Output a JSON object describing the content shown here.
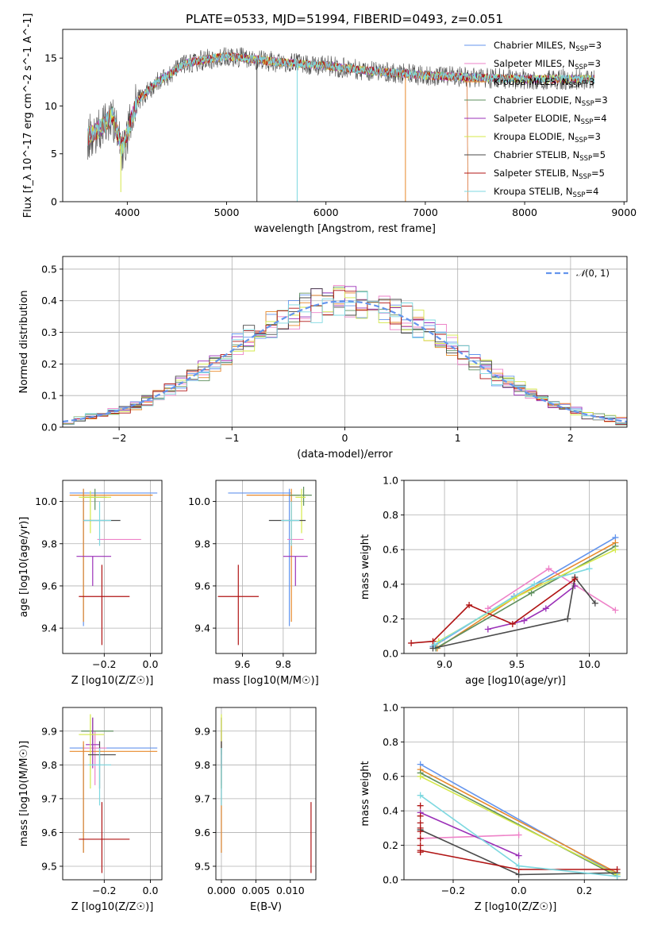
{
  "title": "PLATE=0533, MJD=51994, FIBERID=0493, z=0.051",
  "series": [
    {
      "name": "Chabrier MILES, N$_{SSP}$=3",
      "label_main": "Chabrier MILES, N",
      "label_sub": "SSP",
      "label_tail": "=3",
      "color": "#6495ED"
    },
    {
      "name": "Salpeter MILES, N$_{SSP}$=3",
      "label_main": "Salpeter MILES, N",
      "label_sub": "SSP",
      "label_tail": "=3",
      "color": "#EE82C8"
    },
    {
      "name": "Kroupa MILES, N$_{SSP}$=3",
      "label_main": "Kroupa MILES, N",
      "label_sub": "SSP",
      "label_tail": "=3",
      "color": "#E8892A"
    },
    {
      "name": "Chabrier ELODIE, N$_{SSP}$=3",
      "label_main": "Chabrier ELODIE, N",
      "label_sub": "SSP",
      "label_tail": "=3",
      "color": "#5E8F5E"
    },
    {
      "name": "Salpeter ELODIE, N$_{SSP}$=4",
      "label_main": "Salpeter ELODIE, N",
      "label_sub": "SSP",
      "label_tail": "=4",
      "color": "#9B30B8"
    },
    {
      "name": "Kroupa ELODIE, N$_{SSP}$=3",
      "label_main": "Kroupa ELODIE, N",
      "label_sub": "SSP",
      "label_tail": "=3",
      "color": "#D4E84A"
    },
    {
      "name": "Chabrier STELIB, N$_{SSP}$=5",
      "label_main": "Chabrier STELIB, N",
      "label_sub": "SSP",
      "label_tail": "=5",
      "color": "#4A4A4A"
    },
    {
      "name": "Salpeter STELIB, N$_{SSP}$=5",
      "label_main": "Salpeter STELIB, N",
      "label_sub": "SSP",
      "label_tail": "=5",
      "color": "#B01414"
    },
    {
      "name": "Kroupa STELIB, N$_{SSP}$=4",
      "label_main": "Kroupa STELIB, N",
      "label_sub": "SSP",
      "label_tail": "=4",
      "color": "#7DD8E0"
    }
  ],
  "chart_data": [
    {
      "id": "spectrum",
      "type": "line",
      "xlabel": "wavelength [Angstrom, rest frame]",
      "ylabel": "Flux [f_λ 10^-17 erg cm^-2 s^-1 A^-1]",
      "xlim": [
        3350,
        9030
      ],
      "ylim": [
        0,
        18
      ],
      "xticks": [
        4000,
        5000,
        6000,
        7000,
        8000,
        9000
      ],
      "yticks": [
        0,
        5,
        10,
        15
      ],
      "data_range": [
        3600,
        8700
      ],
      "continuum": {
        "x": [
          3600,
          3750,
          3850,
          3950,
          4100,
          4300,
          4600,
          5000,
          5500,
          6000,
          6500,
          7000,
          7400,
          8000,
          8700
        ],
        "y": [
          6.8,
          7.8,
          9.0,
          5.5,
          10.5,
          12.5,
          14.5,
          15.2,
          14.6,
          14.2,
          13.6,
          13.2,
          13.0,
          12.8,
          12.8
        ]
      },
      "model_end": {
        "MILES": 7420
      },
      "spikes_down": [
        {
          "x": 3935,
          "y": 1.0
        },
        {
          "x": 5305,
          "y": 0.0
        },
        {
          "x": 5710,
          "y": 0.0
        },
        {
          "x": 6800,
          "y": 0.0
        }
      ],
      "grid": false,
      "legend": "upper right"
    },
    {
      "id": "residual_hist",
      "type": "histogram",
      "xlabel": "(data-model)/error",
      "ylabel": "Normed distribution",
      "xlim": [
        -2.5,
        2.5
      ],
      "ylim": [
        0,
        0.54
      ],
      "xticks": [
        -2,
        -1,
        0,
        1,
        2
      ],
      "yticks": [
        0.0,
        0.1,
        0.2,
        0.3,
        0.4,
        0.5
      ],
      "bin_width": 0.1,
      "reference": {
        "name": "N(0,1)",
        "mean": 0,
        "sigma": 1,
        "style": "dashed"
      },
      "grid": true,
      "legend": "upper right"
    },
    {
      "id": "age_vs_Z",
      "type": "errorbar",
      "xlabel": "Z [log10(Z/Z☉)]",
      "ylabel": "age [log10(age/yr)]",
      "xlim": [
        -0.38,
        0.05
      ],
      "ylim": [
        9.28,
        10.1
      ],
      "xticks": [
        -0.2,
        0.0
      ],
      "yticks": [
        9.4,
        9.6,
        9.8,
        10.0
      ],
      "points": [
        {
          "x": -0.29,
          "y": 10.04,
          "xerr": [
            0.06,
            0.32
          ],
          "yerr": [
            0.63,
            0.02
          ]
        },
        {
          "x": -0.13,
          "y": 9.82,
          "xerr": [
            0.1,
            0.09
          ],
          "yerr": [
            0.0,
            0.0
          ]
        },
        {
          "x": -0.29,
          "y": 10.03,
          "xerr": [
            0.06,
            0.3
          ],
          "yerr": [
            0.6,
            0.03
          ]
        },
        {
          "x": -0.24,
          "y": 10.02,
          "xerr": [
            0.05,
            0.05
          ],
          "yerr": [
            0.06,
            0.04
          ]
        },
        {
          "x": -0.25,
          "y": 9.74,
          "xerr": [
            0.07,
            0.08
          ],
          "yerr": [
            0.14,
            0.0
          ]
        },
        {
          "x": -0.26,
          "y": 10.02,
          "xerr": [
            0.05,
            0.09
          ],
          "yerr": [
            0.17,
            0.03
          ]
        },
        {
          "x": -0.2,
          "y": 9.91,
          "xerr": [
            0.09,
            0.07
          ],
          "yerr": [
            0.0,
            0.0
          ]
        },
        {
          "x": -0.21,
          "y": 9.55,
          "xerr": [
            0.1,
            0.12
          ],
          "yerr": [
            0.23,
            0.15
          ]
        },
        {
          "x": -0.22,
          "y": 9.91,
          "xerr": [
            0.07,
            0.05
          ],
          "yerr": [
            0.12,
            0.09
          ]
        }
      ]
    },
    {
      "id": "age_vs_mass",
      "type": "errorbar",
      "xlabel": "mass [log10(M/M☉)]",
      "ylabel": "",
      "xlim": [
        9.47,
        9.96
      ],
      "ylim": [
        9.28,
        10.1
      ],
      "xticks": [
        9.6,
        9.8
      ],
      "yticks": [
        9.4,
        9.6,
        9.8,
        10.0
      ],
      "points": [
        {
          "x": 9.83,
          "y": 10.04,
          "xerr": [
            0.3,
            0.01
          ],
          "yerr": [
            0.63,
            0.02
          ]
        },
        {
          "x": 9.86,
          "y": 9.82,
          "xerr": [
            0.04,
            0.04
          ],
          "yerr": [
            0.0,
            0.0
          ]
        },
        {
          "x": 9.84,
          "y": 10.03,
          "xerr": [
            0.22,
            0.04
          ],
          "yerr": [
            0.6,
            0.03
          ]
        },
        {
          "x": 9.9,
          "y": 10.03,
          "xerr": [
            0.07,
            0.04
          ],
          "yerr": [
            0.05,
            0.04
          ]
        },
        {
          "x": 9.86,
          "y": 9.74,
          "xerr": [
            0.06,
            0.06
          ],
          "yerr": [
            0.14,
            0.0
          ]
        },
        {
          "x": 9.89,
          "y": 10.02,
          "xerr": [
            0.03,
            0.02
          ],
          "yerr": [
            0.17,
            0.04
          ]
        },
        {
          "x": 9.83,
          "y": 9.91,
          "xerr": [
            0.1,
            0.08
          ],
          "yerr": [
            0.0,
            0.0
          ]
        },
        {
          "x": 9.58,
          "y": 9.55,
          "xerr": [
            0.1,
            0.1
          ],
          "yerr": [
            0.23,
            0.15
          ]
        },
        {
          "x": 9.84,
          "y": 9.91,
          "xerr": [
            0.05,
            0.04
          ],
          "yerr": [
            0.12,
            0.09
          ]
        }
      ]
    },
    {
      "id": "mass_weight_vs_age",
      "type": "line",
      "xlabel": "age [log10(age/yr)]",
      "ylabel": "mass weight",
      "xlim": [
        8.72,
        10.26
      ],
      "ylim": [
        0,
        1.0
      ],
      "xticks": [
        9.0,
        9.5,
        10.0
      ],
      "yticks": [
        0.0,
        0.2,
        0.4,
        0.6,
        0.8,
        1.0
      ],
      "lines": [
        {
          "x": [
            8.92,
            9.48,
            10.18
          ],
          "y": [
            0.04,
            0.33,
            0.67
          ]
        },
        {
          "x": [
            9.3,
            9.72,
            10.18
          ],
          "y": [
            0.26,
            0.49,
            0.25
          ]
        },
        {
          "x": [
            8.95,
            9.48,
            10.18
          ],
          "y": [
            0.03,
            0.32,
            0.64
          ]
        },
        {
          "x": [
            8.94,
            9.6,
            10.18
          ],
          "y": [
            0.03,
            0.35,
            0.62
          ]
        },
        {
          "x": [
            9.3,
            9.55,
            9.7,
            9.9
          ],
          "y": [
            0.14,
            0.19,
            0.26,
            0.39
          ]
        },
        {
          "x": [
            8.96,
            9.48,
            10.18
          ],
          "y": [
            0.07,
            0.32,
            0.6
          ]
        },
        {
          "x": [
            8.92,
            9.85,
            9.9,
            10.04
          ],
          "y": [
            0.03,
            0.2,
            0.44,
            0.29
          ]
        },
        {
          "x": [
            8.77,
            8.92,
            9.17,
            9.47,
            9.9
          ],
          "y": [
            0.06,
            0.07,
            0.28,
            0.17,
            0.43
          ]
        },
        {
          "x": [
            8.93,
            9.62,
            10.0
          ],
          "y": [
            0.05,
            0.4,
            0.49
          ]
        }
      ]
    },
    {
      "id": "mass_vs_Z",
      "type": "errorbar",
      "xlabel": "Z [log10(Z/Z☉)]",
      "ylabel": "mass [log10(M/M☉)]",
      "xlim": [
        -0.38,
        0.05
      ],
      "ylim": [
        9.46,
        9.97
      ],
      "xticks": [
        -0.2,
        0.0
      ],
      "yticks": [
        9.5,
        9.6,
        9.7,
        9.8,
        9.9
      ],
      "points": [
        {
          "x": -0.29,
          "y": 9.85,
          "xerr": [
            0.06,
            0.32
          ],
          "yerr": [
            0.31,
            0.01
          ]
        },
        {
          "x": -0.24,
          "y": 9.85,
          "xerr": [
            0.05,
            0.05
          ],
          "yerr": [
            0.11,
            0.05
          ]
        },
        {
          "x": -0.29,
          "y": 9.84,
          "xerr": [
            0.06,
            0.32
          ],
          "yerr": [
            0.3,
            0.03
          ]
        },
        {
          "x": -0.25,
          "y": 9.9,
          "xerr": [
            0.05,
            0.09
          ],
          "yerr": [
            0.07,
            0.04
          ]
        },
        {
          "x": -0.25,
          "y": 9.86,
          "xerr": [
            0.03,
            0.03
          ],
          "yerr": [
            0.07,
            0.08
          ]
        },
        {
          "x": -0.26,
          "y": 9.89,
          "xerr": [
            0.05,
            0.06
          ],
          "yerr": [
            0.16,
            0.06
          ]
        },
        {
          "x": -0.22,
          "y": 9.83,
          "xerr": [
            0.05,
            0.07
          ],
          "yerr": [
            0.1,
            0.04
          ]
        },
        {
          "x": -0.21,
          "y": 9.58,
          "xerr": [
            0.1,
            0.12
          ],
          "yerr": [
            0.1,
            0.11
          ]
        },
        {
          "x": -0.22,
          "y": 9.8,
          "xerr": [
            0.05,
            0.05
          ],
          "yerr": [
            0.12,
            0.05
          ]
        }
      ]
    },
    {
      "id": "mass_vs_ebv",
      "type": "errorbar",
      "xlabel": "E(B-V)",
      "ylabel": "",
      "xlim": [
        -0.0008,
        0.0137
      ],
      "ylim": [
        9.46,
        9.97
      ],
      "xticks": [
        0.0,
        0.005,
        0.01
      ],
      "xticklabels": [
        "0.000",
        "0.005",
        "0.010"
      ],
      "yticks": [
        9.5,
        9.6,
        9.7,
        9.8,
        9.9
      ],
      "points": [
        {
          "x": 0.0,
          "y": 9.85,
          "xerr": [
            0,
            0
          ],
          "yerr": [
            0.31,
            0.01
          ]
        },
        {
          "x": 0.0,
          "y": 9.85,
          "xerr": [
            0,
            0
          ],
          "yerr": [
            0.11,
            0.05
          ]
        },
        {
          "x": 0.0,
          "y": 9.84,
          "xerr": [
            0,
            0
          ],
          "yerr": [
            0.3,
            0.03
          ]
        },
        {
          "x": 0.0,
          "y": 9.9,
          "xerr": [
            0,
            0
          ],
          "yerr": [
            0.07,
            0.04
          ]
        },
        {
          "x": 0.0,
          "y": 9.86,
          "xerr": [
            0,
            0
          ],
          "yerr": [
            0.07,
            0.08
          ]
        },
        {
          "x": 0.0,
          "y": 9.89,
          "xerr": [
            0,
            0
          ],
          "yerr": [
            0.16,
            0.06
          ]
        },
        {
          "x": 0.0,
          "y": 9.83,
          "xerr": [
            0,
            0
          ],
          "yerr": [
            0.1,
            0.04
          ]
        },
        {
          "x": 0.013,
          "y": 9.58,
          "xerr": [
            0,
            0
          ],
          "yerr": [
            0.1,
            0.11
          ]
        },
        {
          "x": 0.0,
          "y": 9.8,
          "xerr": [
            0,
            0
          ],
          "yerr": [
            0.12,
            0.05
          ]
        }
      ]
    },
    {
      "id": "mass_weight_vs_Z",
      "type": "line",
      "xlabel": "Z [log10(Z/Z☉)]",
      "ylabel": "mass weight",
      "xlim": [
        -0.35,
        0.33
      ],
      "ylim": [
        0,
        1.0
      ],
      "xticks": [
        -0.2,
        0.0,
        0.2
      ],
      "yticks": [
        0.0,
        0.2,
        0.4,
        0.6,
        0.8,
        1.0
      ],
      "lines": [
        {
          "x": [
            -0.3,
            0.3
          ],
          "y": [
            0.67,
            0.03
          ]
        },
        {
          "x": [
            -0.3,
            0.0
          ],
          "y": [
            0.24,
            0.26
          ]
        },
        {
          "x": [
            -0.3,
            0.3
          ],
          "y": [
            0.64,
            0.04
          ]
        },
        {
          "x": [
            -0.3,
            0.3
          ],
          "y": [
            0.62,
            0.02
          ]
        },
        {
          "x": [
            -0.3,
            0.0
          ],
          "y": [
            0.39,
            0.14
          ]
        },
        {
          "x": [
            -0.3,
            0.3
          ],
          "y": [
            0.6,
            0.03
          ]
        },
        {
          "x": [
            -0.3,
            0.0,
            0.3
          ],
          "y": [
            0.29,
            0.03,
            0.04
          ]
        },
        {
          "x": [
            -0.3,
            0.0,
            0.3
          ],
          "y": [
            0.17,
            0.06,
            0.06
          ]
        },
        {
          "x": [
            -0.3,
            0.0,
            0.3
          ],
          "y": [
            0.49,
            0.08,
            0.02
          ]
        }
      ],
      "points_only_x": -0.3,
      "points_only_y": [
        0.16,
        0.2,
        0.24,
        0.28,
        0.3,
        0.33,
        0.37,
        0.43
      ]
    }
  ]
}
